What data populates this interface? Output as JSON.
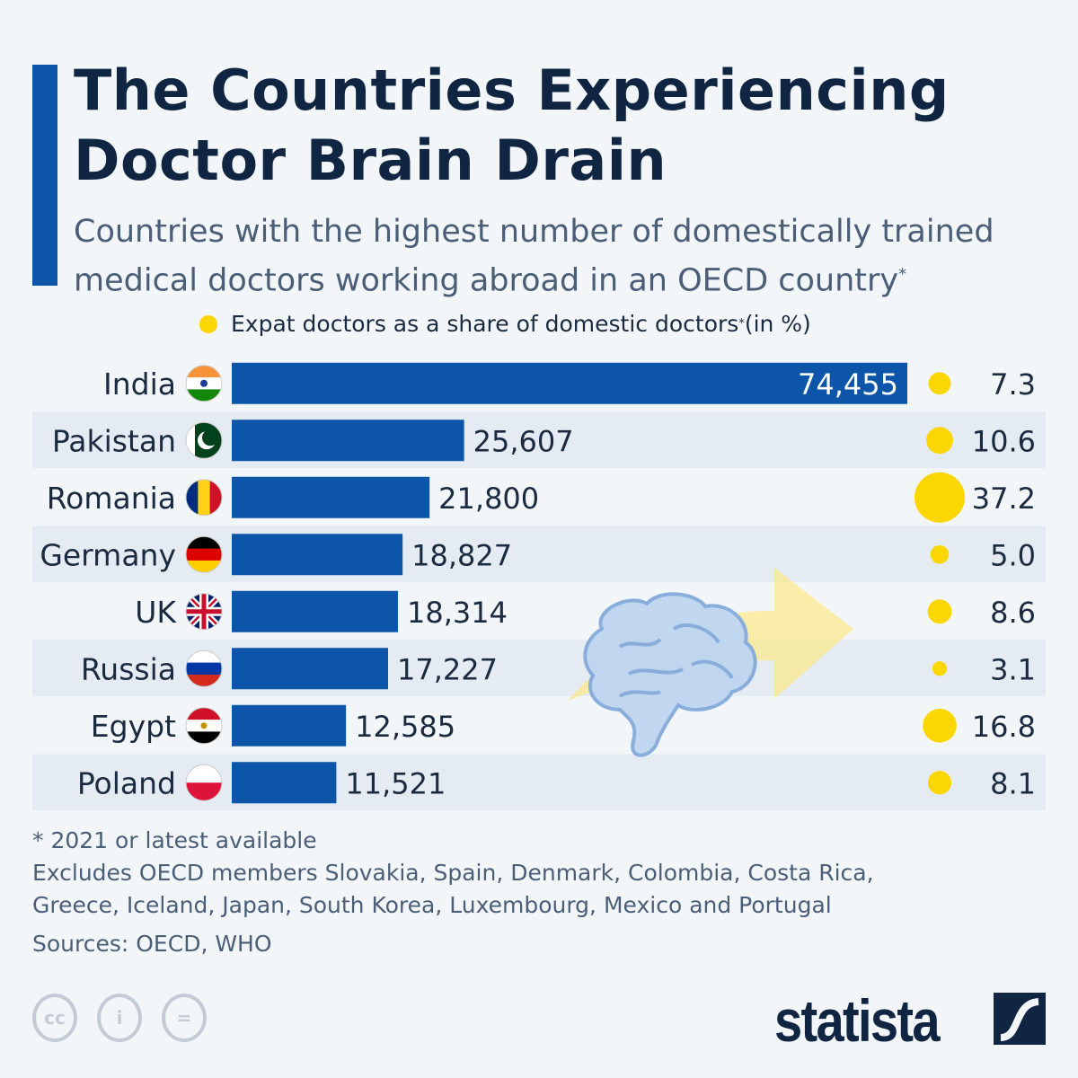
{
  "title_line1": "The Countries Experiencing",
  "title_line2": "Doctor Brain Drain",
  "subtitle_line1": "Countries with the highest number of domestically trained",
  "subtitle_line2": "medical doctors working abroad in an OECD country",
  "subtitle_mark": "*",
  "legend_label": "Expat doctors as a share of domestic doctors",
  "legend_mark": "*",
  "legend_unit": " (in %)",
  "colors": {
    "bar": "#0d55a8",
    "dot": "#fcd600",
    "row_shade": "#e5ebf2",
    "title": "#0f2542"
  },
  "chart_data": {
    "type": "bar",
    "orientation": "horizontal",
    "categories": [
      "India",
      "Pakistan",
      "Romania",
      "Germany",
      "UK",
      "Russia",
      "Egypt",
      "Poland"
    ],
    "series": [
      {
        "values": [
          74455,
          25607,
          21800,
          18827,
          18314,
          17227,
          12585,
          11521
        ],
        "labels": [
          "74,455",
          "25,607",
          "21,800",
          "18,827",
          "18,314",
          "17,227",
          "12,585",
          "11,521"
        ]
      },
      {
        "name": "Expat doctors as a share of domestic doctors (in %)",
        "type": "bubble",
        "values": [
          7.3,
          10.6,
          37.2,
          5.0,
          8.6,
          3.1,
          16.8,
          8.1
        ],
        "labels": [
          "7.3",
          "10.6",
          "37.2",
          "5.0",
          "8.6",
          "3.1",
          "16.8",
          "8.1"
        ]
      }
    ],
    "xlim": [
      0,
      74455
    ],
    "grid": false
  },
  "flags": [
    "india-flag",
    "pakistan-flag",
    "romania-flag",
    "germany-flag",
    "uk-flag",
    "russia-flag",
    "egypt-flag",
    "poland-flag"
  ],
  "footnote": "* 2021 or latest available",
  "note_line1": "Excludes OECD members Slovakia, Spain, Denmark, Colombia, Costa Rica,",
  "note_line2": "Greece, Iceland, Japan, South Korea, Luxembourg, Mexico and Portugal",
  "sources": "Sources: OECD, WHO",
  "license_icons": [
    "cc-icon",
    "attribution-icon",
    "no-derivatives-icon"
  ],
  "brand": "statista"
}
